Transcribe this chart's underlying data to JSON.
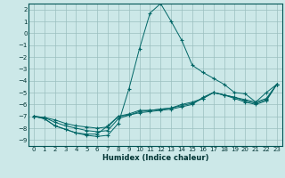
{
  "xlabel": "Humidex (Indice chaleur)",
  "background_color": "#cce8e8",
  "grid_color": "#9bbfbf",
  "line_color": "#006666",
  "marker": "+",
  "xlim": [
    -0.5,
    23.5
  ],
  "ylim": [
    -9.5,
    2.5
  ],
  "xticks": [
    0,
    1,
    2,
    3,
    4,
    5,
    6,
    7,
    8,
    9,
    10,
    11,
    12,
    13,
    14,
    15,
    16,
    17,
    18,
    19,
    20,
    21,
    22,
    23
  ],
  "yticks": [
    -9,
    -8,
    -7,
    -6,
    -5,
    -4,
    -3,
    -2,
    -1,
    0,
    1,
    2
  ],
  "series": [
    {
      "x": [
        0,
        1,
        2,
        3,
        4,
        5,
        6,
        7,
        8,
        9,
        10,
        11,
        12,
        13,
        14,
        15,
        16,
        17,
        18,
        19,
        20,
        21,
        22,
        23
      ],
      "y": [
        -7.0,
        -7.2,
        -7.8,
        -8.1,
        -8.4,
        -8.6,
        -8.7,
        -8.6,
        -7.6,
        -4.7,
        -1.3,
        1.7,
        2.5,
        1.0,
        -0.6,
        -2.7,
        -3.3,
        -3.8,
        -4.3,
        -5.0,
        -5.1,
        -5.8,
        -5.0,
        -4.3
      ]
    },
    {
      "x": [
        0,
        1,
        2,
        3,
        4,
        5,
        6,
        7,
        8,
        9,
        10,
        11,
        12,
        13,
        14,
        15,
        16,
        17,
        18,
        19,
        20,
        21,
        22,
        23
      ],
      "y": [
        -7.0,
        -7.2,
        -7.8,
        -8.1,
        -8.4,
        -8.5,
        -8.5,
        -7.8,
        -7.0,
        -6.8,
        -6.5,
        -6.5,
        -6.4,
        -6.3,
        -6.0,
        -5.8,
        -5.5,
        -5.0,
        -5.2,
        -5.5,
        -5.8,
        -6.0,
        -5.7,
        -4.3
      ]
    },
    {
      "x": [
        0,
        1,
        2,
        3,
        4,
        5,
        6,
        7,
        8,
        9,
        10,
        11,
        12,
        13,
        14,
        15,
        16,
        17,
        18,
        19,
        20,
        21,
        22,
        23
      ],
      "y": [
        -7.0,
        -7.1,
        -7.5,
        -7.8,
        -8.0,
        -8.2,
        -8.3,
        -8.2,
        -7.2,
        -6.9,
        -6.6,
        -6.5,
        -6.4,
        -6.3,
        -6.1,
        -5.9,
        -5.5,
        -5.0,
        -5.2,
        -5.4,
        -5.7,
        -5.9,
        -5.6,
        -4.3
      ]
    },
    {
      "x": [
        0,
        1,
        2,
        3,
        4,
        5,
        6,
        7,
        8,
        9,
        10,
        11,
        12,
        13,
        14,
        15,
        16,
        17,
        18,
        19,
        20,
        21,
        22,
        23
      ],
      "y": [
        -7.0,
        -7.1,
        -7.3,
        -7.6,
        -7.8,
        -7.9,
        -8.0,
        -7.9,
        -7.0,
        -6.9,
        -6.7,
        -6.6,
        -6.5,
        -6.4,
        -6.2,
        -6.0,
        -5.4,
        -5.0,
        -5.2,
        -5.4,
        -5.6,
        -5.8,
        -5.5,
        -4.3
      ]
    }
  ]
}
